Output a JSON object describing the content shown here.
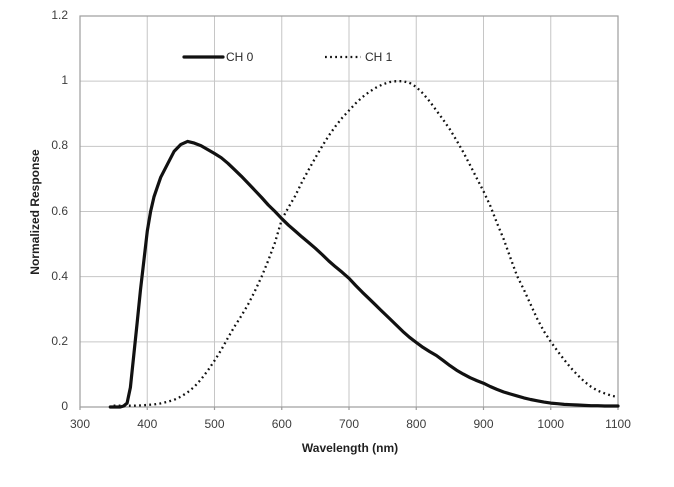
{
  "chart_data": {
    "type": "line",
    "title": "",
    "xlabel": "Wavelength (nm)",
    "ylabel": "Normalized Response",
    "xlim": [
      300,
      1100
    ],
    "ylim": [
      0,
      1.2
    ],
    "grid": true,
    "legend_position": "top-inside",
    "x_ticks": [
      300,
      400,
      500,
      600,
      700,
      800,
      900,
      1000,
      1100
    ],
    "x_tick_labels": [
      "300",
      "400",
      "500",
      "600",
      "700",
      "800",
      "900",
      "1000",
      "1100"
    ],
    "y_ticks": [
      0,
      0.2,
      0.4,
      0.6,
      0.8,
      1,
      1.2
    ],
    "y_tick_labels": [
      "0",
      "0.2",
      "0.4",
      "0.6",
      "0.8",
      "1",
      "1.2"
    ],
    "series": [
      {
        "name": "CH 0",
        "line_style": "solid",
        "color": "#111111",
        "x": [
          345,
          350,
          355,
          360,
          365,
          370,
          375,
          380,
          385,
          390,
          395,
          400,
          405,
          410,
          415,
          420,
          430,
          440,
          450,
          460,
          470,
          480,
          490,
          500,
          510,
          520,
          530,
          540,
          550,
          560,
          570,
          580,
          590,
          600,
          610,
          620,
          630,
          640,
          650,
          660,
          670,
          680,
          690,
          700,
          710,
          720,
          730,
          740,
          750,
          760,
          770,
          780,
          790,
          800,
          810,
          820,
          830,
          840,
          850,
          860,
          870,
          880,
          890,
          900,
          910,
          920,
          930,
          940,
          950,
          960,
          970,
          980,
          990,
          1000,
          1010,
          1020,
          1030,
          1040,
          1050,
          1060,
          1070,
          1080,
          1090,
          1100
        ],
        "values": [
          0,
          0,
          0,
          0,
          0.003,
          0.012,
          0.06,
          0.16,
          0.26,
          0.36,
          0.45,
          0.54,
          0.6,
          0.645,
          0.675,
          0.705,
          0.745,
          0.785,
          0.806,
          0.815,
          0.81,
          0.802,
          0.79,
          0.778,
          0.765,
          0.748,
          0.728,
          0.708,
          0.687,
          0.665,
          0.643,
          0.62,
          0.6,
          0.578,
          0.558,
          0.54,
          0.522,
          0.505,
          0.487,
          0.468,
          0.448,
          0.43,
          0.413,
          0.395,
          0.373,
          0.352,
          0.332,
          0.312,
          0.292,
          0.272,
          0.252,
          0.232,
          0.214,
          0.198,
          0.183,
          0.17,
          0.158,
          0.143,
          0.127,
          0.113,
          0.101,
          0.09,
          0.081,
          0.073,
          0.063,
          0.054,
          0.046,
          0.04,
          0.034,
          0.028,
          0.023,
          0.019,
          0.015,
          0.012,
          0.01,
          0.008,
          0.007,
          0.006,
          0.005,
          0.004,
          0.004,
          0.003,
          0.003,
          0.003
        ]
      },
      {
        "name": "CH 1",
        "line_style": "dotted",
        "color": "#111111",
        "x": [
          350,
          360,
          370,
          380,
          390,
          400,
          410,
          420,
          430,
          440,
          450,
          460,
          470,
          480,
          490,
          500,
          510,
          520,
          530,
          540,
          550,
          560,
          570,
          580,
          590,
          600,
          610,
          620,
          630,
          640,
          650,
          660,
          670,
          680,
          690,
          700,
          710,
          720,
          730,
          740,
          750,
          760,
          770,
          780,
          790,
          800,
          810,
          820,
          830,
          840,
          850,
          860,
          870,
          880,
          890,
          900,
          910,
          920,
          930,
          940,
          950,
          960,
          970,
          980,
          990,
          1000,
          1010,
          1020,
          1030,
          1040,
          1050,
          1060,
          1070,
          1080,
          1090,
          1100
        ],
        "values": [
          0.004,
          0.004,
          0.004,
          0.004,
          0.005,
          0.006,
          0.008,
          0.011,
          0.016,
          0.022,
          0.032,
          0.045,
          0.062,
          0.085,
          0.112,
          0.142,
          0.175,
          0.212,
          0.248,
          0.28,
          0.315,
          0.355,
          0.4,
          0.45,
          0.505,
          0.575,
          0.613,
          0.648,
          0.69,
          0.728,
          0.765,
          0.8,
          0.833,
          0.862,
          0.888,
          0.91,
          0.932,
          0.951,
          0.967,
          0.98,
          0.99,
          0.997,
          1.0,
          1.0,
          0.995,
          0.982,
          0.962,
          0.938,
          0.91,
          0.882,
          0.852,
          0.818,
          0.782,
          0.742,
          0.702,
          0.662,
          0.618,
          0.565,
          0.515,
          0.458,
          0.402,
          0.36,
          0.315,
          0.27,
          0.232,
          0.2,
          0.172,
          0.145,
          0.12,
          0.098,
          0.078,
          0.062,
          0.05,
          0.042,
          0.035,
          0.03
        ]
      }
    ]
  },
  "colors": {
    "gridline": "#c6c6c6",
    "axis_frame": "#9d9d9d",
    "tick_text": "#3d3d3d",
    "curve": "#111111",
    "background": "#ffffff"
  }
}
